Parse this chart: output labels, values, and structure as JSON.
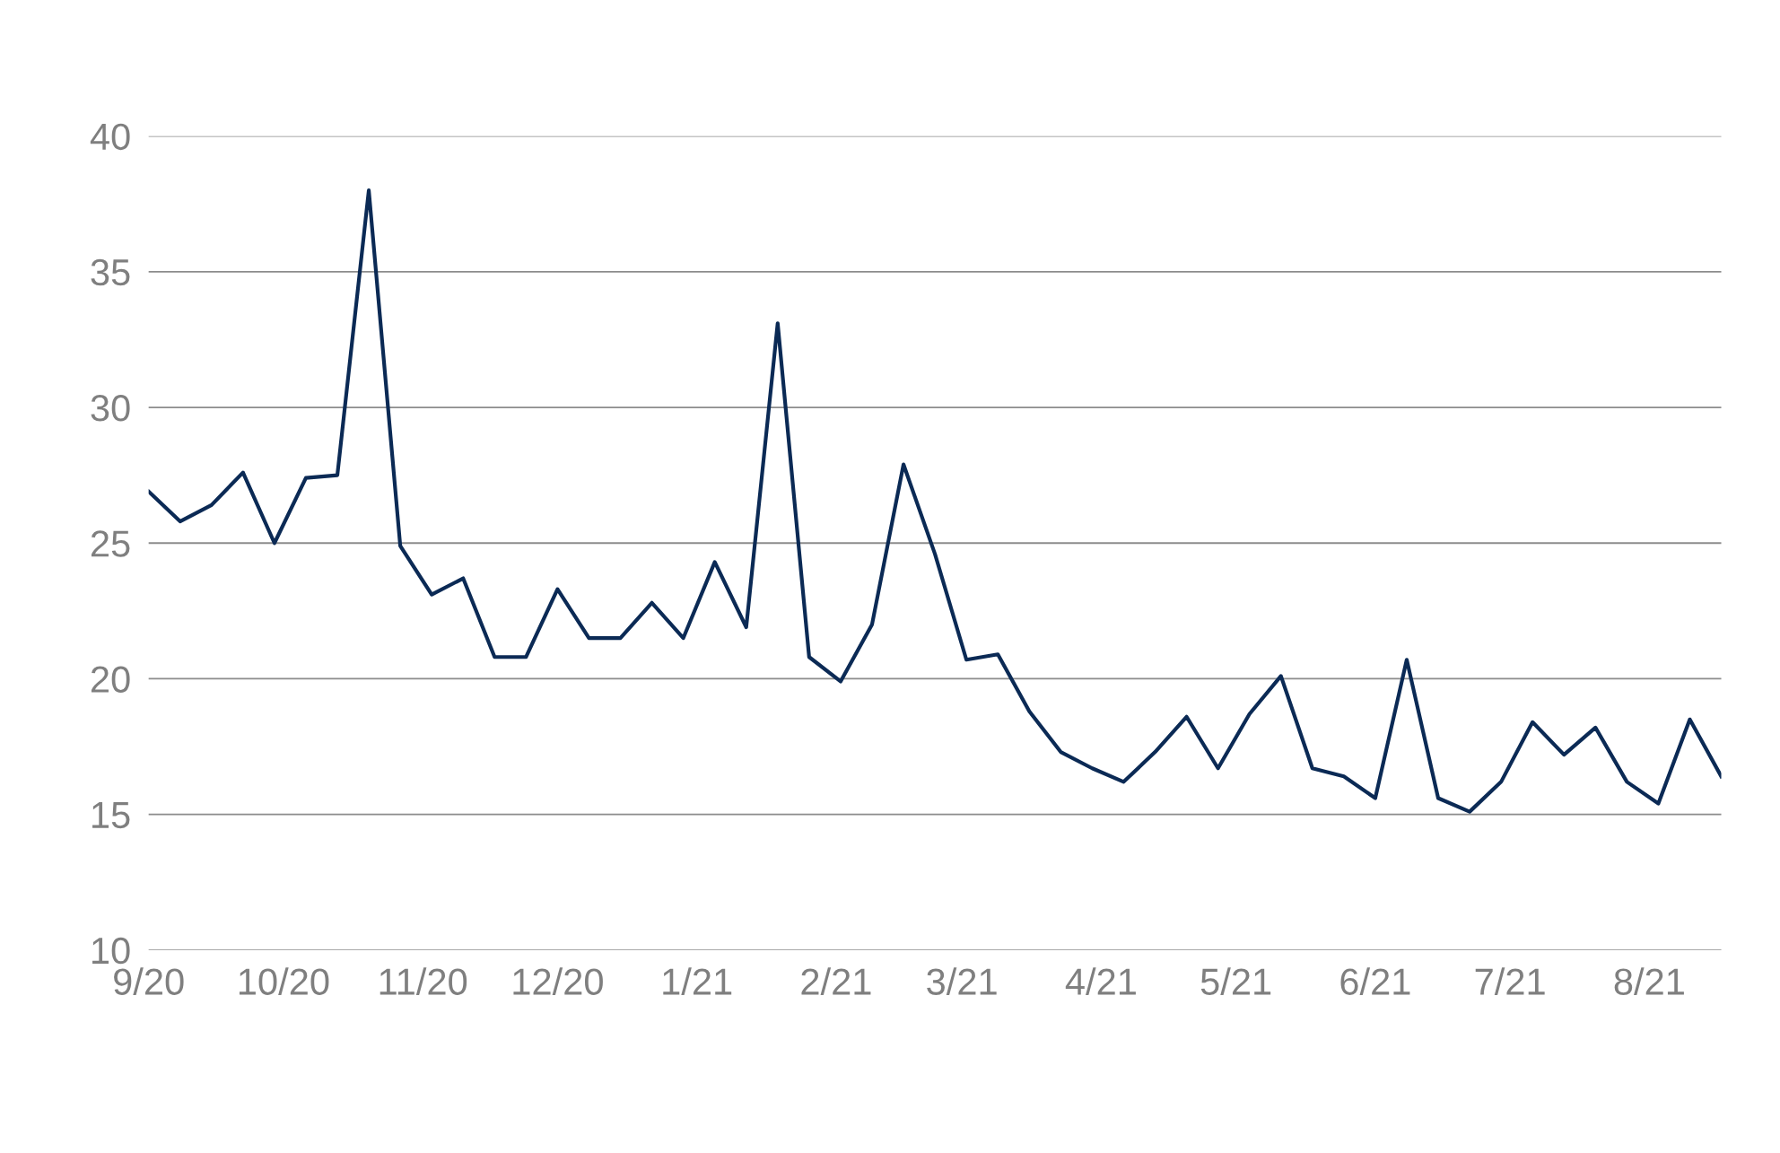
{
  "chart_data": {
    "type": "line",
    "x": [
      "2020-09-01",
      "2020-09-08",
      "2020-09-15",
      "2020-09-22",
      "2020-09-29",
      "2020-10-06",
      "2020-10-13",
      "2020-10-20",
      "2020-10-27",
      "2020-11-03",
      "2020-11-10",
      "2020-11-17",
      "2020-11-24",
      "2020-12-01",
      "2020-12-08",
      "2020-12-15",
      "2020-12-22",
      "2020-12-29",
      "2021-01-05",
      "2021-01-12",
      "2021-01-19",
      "2021-01-26",
      "2021-02-02",
      "2021-02-09",
      "2021-02-16",
      "2021-02-23",
      "2021-03-02",
      "2021-03-09",
      "2021-03-16",
      "2021-03-23",
      "2021-03-30",
      "2021-04-06",
      "2021-04-13",
      "2021-04-20",
      "2021-04-27",
      "2021-05-04",
      "2021-05-11",
      "2021-05-18",
      "2021-05-25",
      "2021-06-01",
      "2021-06-08",
      "2021-06-15",
      "2021-06-22",
      "2021-06-29",
      "2021-07-06",
      "2021-07-13",
      "2021-07-20",
      "2021-07-27",
      "2021-08-03",
      "2021-08-10",
      "2021-08-17"
    ],
    "series": [
      {
        "color": "#0b2a55",
        "values": [
          26.9,
          25.8,
          26.4,
          27.6,
          25.0,
          27.4,
          27.5,
          38.0,
          24.9,
          23.1,
          23.7,
          20.8,
          20.8,
          23.3,
          21.5,
          21.5,
          22.8,
          21.5,
          24.3,
          21.9,
          33.1,
          20.8,
          19.9,
          22.0,
          27.9,
          24.6,
          20.7,
          20.9,
          18.8,
          17.3,
          16.7,
          16.2,
          17.3,
          18.6,
          16.7,
          18.7,
          20.1,
          16.7,
          16.4,
          15.6,
          20.7,
          15.6,
          15.1,
          16.2,
          18.4,
          17.2,
          18.2,
          16.2,
          15.4,
          18.5,
          16.4
        ]
      }
    ],
    "xlim": [
      "2020-09-01",
      "2021-08-17"
    ],
    "xticks": [
      {
        "value": "2020-09-01",
        "label": "9/20"
      },
      {
        "value": "2020-10-01",
        "label": "10/20"
      },
      {
        "value": "2020-11-01",
        "label": "11/20"
      },
      {
        "value": "2020-12-01",
        "label": "12/20"
      },
      {
        "value": "2021-01-01",
        "label": "1/21"
      },
      {
        "value": "2021-02-01",
        "label": "2/21"
      },
      {
        "value": "2021-03-01",
        "label": "3/21"
      },
      {
        "value": "2021-04-01",
        "label": "4/21"
      },
      {
        "value": "2021-05-01",
        "label": "5/21"
      },
      {
        "value": "2021-06-01",
        "label": "6/21"
      },
      {
        "value": "2021-07-01",
        "label": "7/21"
      },
      {
        "value": "2021-08-01",
        "label": "8/21"
      }
    ],
    "ylim": [
      10,
      40
    ],
    "yticks": [
      10,
      15,
      20,
      25,
      30,
      35,
      40
    ],
    "grid": "y"
  }
}
